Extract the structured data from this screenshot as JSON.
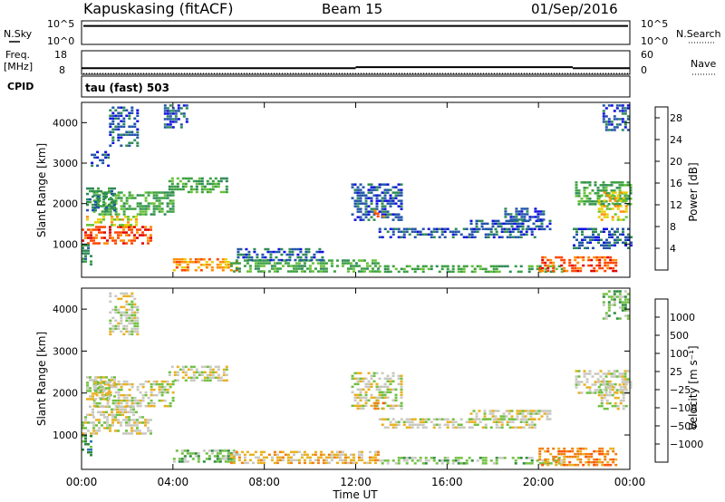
{
  "header": {
    "station": "Kapuskasing (fitACF)",
    "beam": "Beam 15",
    "date": "01/Sep/2016"
  },
  "status_panels": {
    "noise": {
      "left_label": "N.Sky",
      "left_ticks": [
        "10^5",
        "10^0"
      ],
      "right_label": "N.Search",
      "right_ticks": [
        "10^5",
        "10^0"
      ],
      "sky_level_log": 4.4
    },
    "freq": {
      "left_label_1": "Freq.",
      "left_label_2": "[MHz]",
      "left_ticks": [
        "18",
        "8"
      ],
      "right_label": "Nave",
      "right_ticks": [
        "60",
        "0"
      ],
      "freq_mhz": [
        {
          "from_h": 0.0,
          "to_h": 12.0,
          "value": 10.5
        },
        {
          "from_h": 12.0,
          "to_h": 21.5,
          "value": 11.0
        },
        {
          "from_h": 21.5,
          "to_h": 24.0,
          "value": 10.5
        }
      ]
    },
    "cpid": {
      "label": "CPID",
      "text": "tau (fast) 503"
    }
  },
  "colors": {
    "power_scale": [
      "#1010e0",
      "#2255aa",
      "#2d8a55",
      "#3aa040",
      "#66c035",
      "#e6d000",
      "#ff8c00",
      "#ff4400",
      "#e00000"
    ],
    "velocity_scale": [
      "#2030b0",
      "#2f6fb8",
      "#2c8a3c",
      "#70c040",
      "#c8c8c0",
      "#e8b020",
      "#f08010",
      "#ff5000",
      "#e00000"
    ]
  },
  "chart_data": [
    {
      "type": "heatmap",
      "name": "power",
      "xlabel": "",
      "ylabel": "Slant Range [km]",
      "xlim_hours": [
        0,
        24
      ],
      "ylim_km": [
        180,
        4500
      ],
      "x_ticks": [
        "00:00",
        "04:00",
        "08:00",
        "12:00",
        "16:00",
        "20:00",
        "00:00"
      ],
      "y_ticks": [
        "1000",
        "2000",
        "3000",
        "4000"
      ],
      "colorbar": {
        "label": "Power [dB]",
        "ticks": [
          "4",
          "8",
          "12",
          "16",
          "20",
          "24",
          "28"
        ],
        "range": [
          0,
          30
        ]
      },
      "patches": [
        {
          "t0": 0.0,
          "t1": 3.0,
          "r0": 1000,
          "r1": 1450,
          "level": 7
        },
        {
          "t0": 0.2,
          "t1": 2.4,
          "r0": 1450,
          "r1": 1700,
          "level": 5
        },
        {
          "t0": 0.5,
          "t1": 4.0,
          "r0": 1700,
          "r1": 2300,
          "level": 3
        },
        {
          "t0": 0.2,
          "t1": 1.5,
          "r0": 1850,
          "r1": 2400,
          "level": 2
        },
        {
          "t0": 0.4,
          "t1": 1.2,
          "r0": 2900,
          "r1": 3300,
          "level": 1
        },
        {
          "t0": 3.8,
          "t1": 6.4,
          "r0": 2300,
          "r1": 2650,
          "level": 3
        },
        {
          "t0": 1.2,
          "t1": 2.5,
          "r0": 3400,
          "r1": 4400,
          "level": 1
        },
        {
          "t0": 3.6,
          "t1": 4.6,
          "r0": 3900,
          "r1": 4450,
          "level": 1
        },
        {
          "t0": 4.0,
          "t1": 6.8,
          "r0": 350,
          "r1": 650,
          "level": 6
        },
        {
          "t0": 6.5,
          "t1": 13.0,
          "r0": 300,
          "r1": 620,
          "level": 3
        },
        {
          "t0": 6.8,
          "t1": 10.5,
          "r0": 600,
          "r1": 900,
          "level": 1
        },
        {
          "t0": 13.0,
          "t1": 21.0,
          "r0": 300,
          "r1": 480,
          "level": 3
        },
        {
          "t0": 11.8,
          "t1": 14.0,
          "r0": 1600,
          "r1": 2500,
          "level": 1
        },
        {
          "t0": 12.8,
          "t1": 13.2,
          "r0": 1650,
          "r1": 1850,
          "level": 6
        },
        {
          "t0": 13.0,
          "t1": 19.8,
          "r0": 1150,
          "r1": 1400,
          "level": 1
        },
        {
          "t0": 17.0,
          "t1": 20.5,
          "r0": 1350,
          "r1": 1600,
          "level": 1
        },
        {
          "t0": 18.5,
          "t1": 20.2,
          "r0": 1600,
          "r1": 1900,
          "level": 1
        },
        {
          "t0": 20.0,
          "t1": 23.4,
          "r0": 300,
          "r1": 700,
          "level": 7
        },
        {
          "t0": 21.6,
          "t1": 24.0,
          "r0": 2000,
          "r1": 2550,
          "level": 3
        },
        {
          "t0": 22.6,
          "t1": 23.8,
          "r0": 1600,
          "r1": 2300,
          "level": 5
        },
        {
          "t0": 21.5,
          "t1": 24.0,
          "r0": 900,
          "r1": 1400,
          "level": 1
        },
        {
          "t0": 22.8,
          "t1": 23.9,
          "r0": 3800,
          "r1": 4450,
          "level": 1
        },
        {
          "t0": 0.0,
          "t1": 0.4,
          "r0": 500,
          "r1": 1000,
          "level": 2
        }
      ]
    },
    {
      "type": "heatmap",
      "name": "velocity",
      "xlabel": "Time UT",
      "ylabel": "Slant Range [km]",
      "xlim_hours": [
        0,
        24
      ],
      "ylim_km": [
        180,
        4500
      ],
      "x_ticks": [
        "00:00",
        "04:00",
        "08:00",
        "12:00",
        "16:00",
        "20:00",
        "00:00"
      ],
      "y_ticks": [
        "1000",
        "2000",
        "3000",
        "4000"
      ],
      "colorbar": {
        "label": "Velocity  [m s⁻¹]",
        "ticks": [
          "1000",
          "500",
          "100",
          "25",
          "−25",
          "−100",
          "−500",
          "−1000"
        ]
      },
      "patches": [
        {
          "t0": 0.0,
          "t1": 3.0,
          "r0": 1000,
          "r1": 1450,
          "level": 4
        },
        {
          "t0": 0.2,
          "t1": 2.4,
          "r0": 1450,
          "r1": 1700,
          "level": 4
        },
        {
          "t0": 0.5,
          "t1": 4.0,
          "r0": 1700,
          "r1": 2300,
          "level": 4
        },
        {
          "t0": 0.2,
          "t1": 1.5,
          "r0": 1850,
          "r1": 2400,
          "level": 4
        },
        {
          "t0": 3.8,
          "t1": 6.4,
          "r0": 2300,
          "r1": 2650,
          "level": 4
        },
        {
          "t0": 1.2,
          "t1": 2.5,
          "r0": 3400,
          "r1": 4400,
          "level": 4
        },
        {
          "t0": 4.0,
          "t1": 6.8,
          "r0": 350,
          "r1": 650,
          "level": 3
        },
        {
          "t0": 6.5,
          "t1": 13.0,
          "r0": 300,
          "r1": 620,
          "level": 5
        },
        {
          "t0": 13.0,
          "t1": 21.0,
          "r0": 300,
          "r1": 480,
          "level": 3
        },
        {
          "t0": 11.8,
          "t1": 14.0,
          "r0": 1600,
          "r1": 2500,
          "level": 4
        },
        {
          "t0": 12.8,
          "t1": 13.2,
          "r0": 1650,
          "r1": 1850,
          "level": 6
        },
        {
          "t0": 13.0,
          "t1": 19.8,
          "r0": 1150,
          "r1": 1400,
          "level": 4
        },
        {
          "t0": 17.0,
          "t1": 20.5,
          "r0": 1350,
          "r1": 1600,
          "level": 4
        },
        {
          "t0": 20.0,
          "t1": 23.4,
          "r0": 300,
          "r1": 700,
          "level": 6
        },
        {
          "t0": 21.6,
          "t1": 24.0,
          "r0": 2000,
          "r1": 2550,
          "level": 4
        },
        {
          "t0": 22.6,
          "t1": 23.8,
          "r0": 1600,
          "r1": 2300,
          "level": 4
        },
        {
          "t0": 22.8,
          "t1": 23.9,
          "r0": 3800,
          "r1": 4450,
          "level": 3
        },
        {
          "t0": 0.0,
          "t1": 0.4,
          "r0": 500,
          "r1": 1000,
          "level": 2
        }
      ]
    }
  ]
}
